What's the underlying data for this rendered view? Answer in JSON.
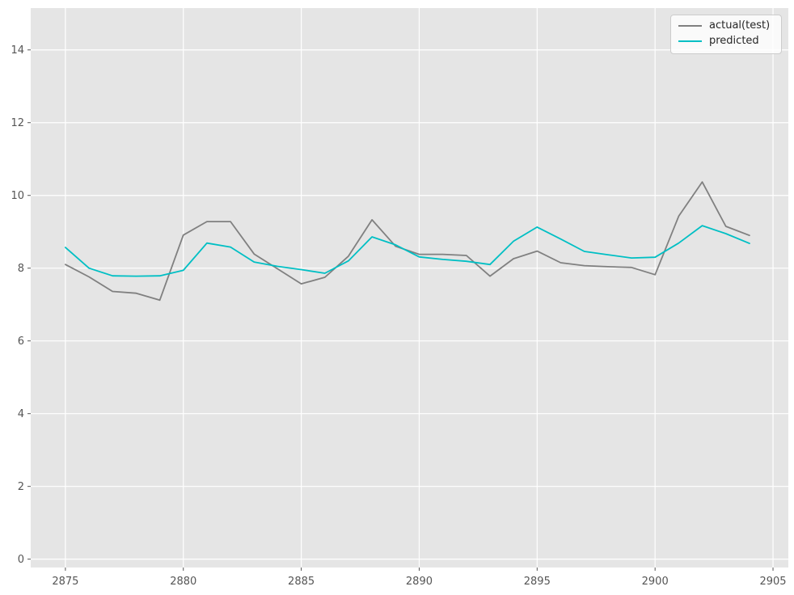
{
  "figure": {
    "background": "#ffffff",
    "plot_background": "#e5e5e5",
    "grid_color": "#ffffff",
    "tick_color": "#555555",
    "label_color": "#555555"
  },
  "legend": {
    "position": "upper-right",
    "background": "rgba(255,255,255,0.8)",
    "border_color": "#cccccc",
    "text_color": "#262626"
  },
  "chart_data": {
    "type": "line",
    "title": "",
    "xlabel": "",
    "ylabel": "",
    "grid": true,
    "xlim": [
      2873.53,
      2905.65
    ],
    "ylim": [
      -0.23,
      15.15
    ],
    "xticks": [
      2875,
      2880,
      2885,
      2890,
      2895,
      2900,
      2905
    ],
    "yticks": [
      0,
      2,
      4,
      6,
      8,
      10,
      12,
      14
    ],
    "x": [
      2875,
      2876,
      2877,
      2878,
      2879,
      2880,
      2881,
      2882,
      2883,
      2884,
      2885,
      2886,
      2887,
      2888,
      2889,
      2890,
      2891,
      2892,
      2893,
      2894,
      2895,
      2896,
      2897,
      2898,
      2899,
      2900,
      2901,
      2902,
      2903,
      2904
    ],
    "series": [
      {
        "name": "actual(test)",
        "color": "#808080",
        "values": [
          8.1,
          7.76,
          7.36,
          7.31,
          7.12,
          8.91,
          9.28,
          9.28,
          8.39,
          7.98,
          7.57,
          7.75,
          8.33,
          9.33,
          8.6,
          8.38,
          8.38,
          8.35,
          7.78,
          8.26,
          8.47,
          8.15,
          8.07,
          8.04,
          8.02,
          7.82,
          9.43,
          10.37,
          9.15,
          8.9
        ]
      },
      {
        "name": "predicted",
        "color": "#00bfc4",
        "values": [
          8.57,
          8.0,
          7.79,
          7.78,
          7.79,
          7.94,
          8.69,
          8.58,
          8.17,
          8.05,
          7.96,
          7.86,
          8.2,
          8.86,
          8.64,
          8.31,
          8.24,
          8.19,
          8.1,
          8.74,
          9.13,
          8.8,
          8.46,
          8.37,
          8.28,
          8.3,
          8.69,
          9.17,
          8.95,
          8.68
        ]
      }
    ]
  }
}
